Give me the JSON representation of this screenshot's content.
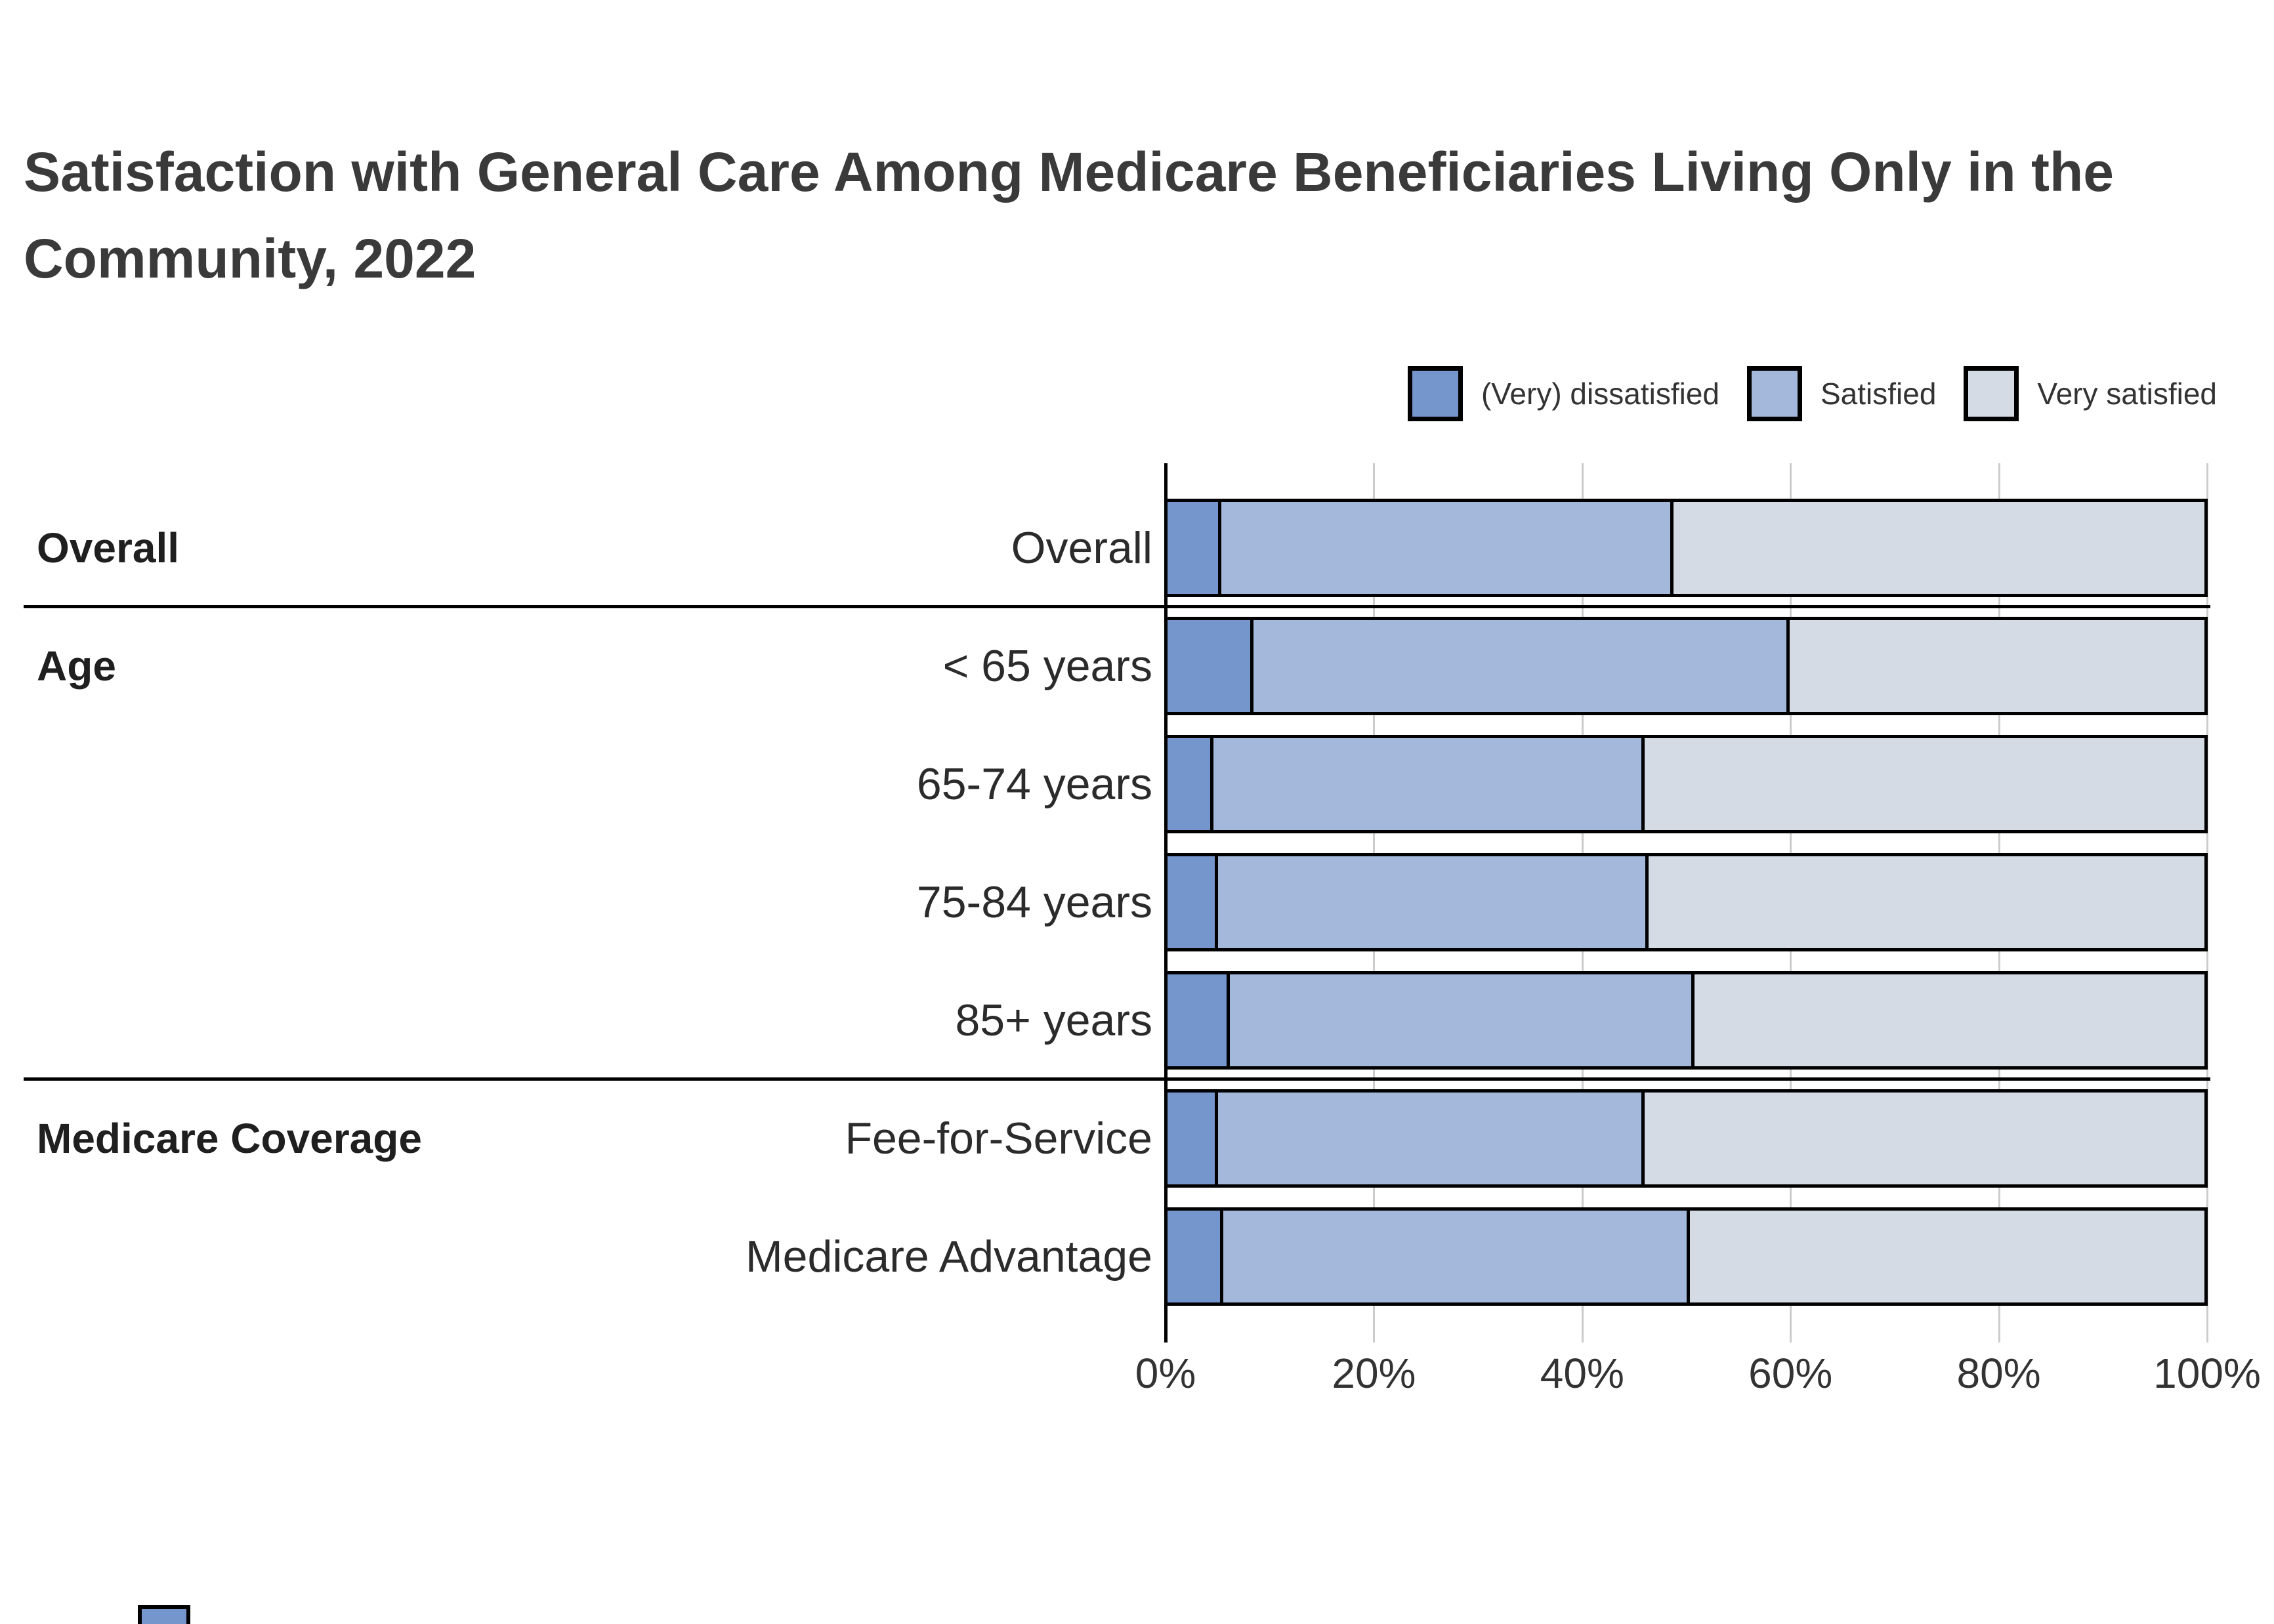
{
  "title": {
    "line1": "Satisfaction with General Care Among Medicare Beneficiaries Living Only in the",
    "line2": "Community, 2022"
  },
  "legend": {
    "items": [
      {
        "label": "(Very) dissatisfied",
        "color": "#7595cd"
      },
      {
        "label": "Satisfied",
        "color": "#a4b8dc"
      },
      {
        "label": "Very satisfied",
        "color": "#d5dbe4"
      }
    ]
  },
  "groups": [
    {
      "label": "Overall",
      "start_row": 0
    },
    {
      "label": "Age",
      "start_row": 1
    },
    {
      "label": "Medicare Coverage",
      "start_row": 5
    }
  ],
  "separators_after_rows": [
    0,
    4
  ],
  "axis": {
    "ticks": [
      "0%",
      "20%",
      "40%",
      "60%",
      "80%",
      "100%"
    ]
  },
  "chart_data": {
    "type": "bar",
    "orientation": "horizontal",
    "stacked": true,
    "title": "Satisfaction with General Care Among Medicare Beneficiaries Living Only in the Community, 2022",
    "categories": [
      "Overall",
      "< 65 years",
      "65-74 years",
      "75-84 years",
      "85+ years",
      "Fee-for-Service",
      "Medicare Advantage"
    ],
    "series": [
      {
        "name": "(Very) dissatisfied",
        "color": "#7595cd",
        "values": [
          5.2,
          8.3,
          4.4,
          4.9,
          6.0,
          4.9,
          5.4
        ]
      },
      {
        "name": "Satisfied",
        "color": "#a4b8dc",
        "values": [
          43.6,
          51.7,
          41.6,
          41.5,
          44.8,
          41.1,
          45.0
        ]
      },
      {
        "name": "Very satisfied",
        "color": "#d5dbe4",
        "values": [
          51.2,
          40.0,
          54.0,
          53.6,
          49.2,
          54.0,
          49.6
        ]
      }
    ],
    "xlim": [
      0,
      100
    ],
    "x_tick_interval": 20,
    "grid": "vertical",
    "legend_position": "top-right",
    "xlabel": "",
    "ylabel": ""
  },
  "colors": {
    "axis": "#000000",
    "grid": "#cccccc",
    "bar_border": "#000000",
    "text": "#333333",
    "title": "#3a3a3a"
  }
}
